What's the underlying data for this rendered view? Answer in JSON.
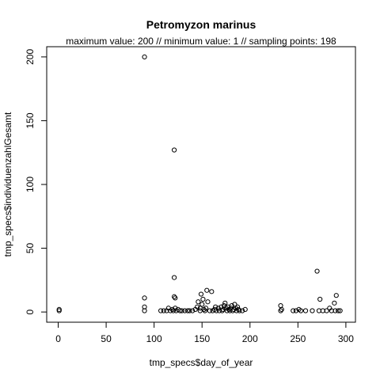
{
  "chart_data": {
    "type": "scatter",
    "title": "Petromyzon marinus",
    "subtitle": "maximum value: 200  //  minimum value: 1  // sampling points: 198",
    "xlabel": "tmp_specs$day_of_year",
    "ylabel": "tmp_specs$individuenzahlGesamt",
    "xlim": [
      -12,
      310
    ],
    "ylim": [
      -8,
      208
    ],
    "xticks": [
      0,
      50,
      100,
      150,
      200,
      250,
      300
    ],
    "yticks": [
      0,
      50,
      100,
      150,
      200
    ],
    "grid": false,
    "points": [
      {
        "x": 1,
        "y": 1
      },
      {
        "x": 1,
        "y": 2
      },
      {
        "x": 90,
        "y": 200
      },
      {
        "x": 90,
        "y": 11
      },
      {
        "x": 90,
        "y": 4
      },
      {
        "x": 90,
        "y": 1
      },
      {
        "x": 107,
        "y": 1
      },
      {
        "x": 110,
        "y": 1
      },
      {
        "x": 113,
        "y": 1
      },
      {
        "x": 115,
        "y": 3
      },
      {
        "x": 117,
        "y": 1
      },
      {
        "x": 119,
        "y": 2
      },
      {
        "x": 120,
        "y": 1
      },
      {
        "x": 121,
        "y": 127
      },
      {
        "x": 121,
        "y": 27
      },
      {
        "x": 121,
        "y": 12
      },
      {
        "x": 122,
        "y": 11
      },
      {
        "x": 122,
        "y": 3
      },
      {
        "x": 123,
        "y": 1
      },
      {
        "x": 125,
        "y": 2
      },
      {
        "x": 127,
        "y": 1
      },
      {
        "x": 129,
        "y": 1
      },
      {
        "x": 132,
        "y": 1
      },
      {
        "x": 135,
        "y": 1
      },
      {
        "x": 137,
        "y": 1
      },
      {
        "x": 140,
        "y": 1
      },
      {
        "x": 143,
        "y": 2
      },
      {
        "x": 145,
        "y": 4
      },
      {
        "x": 146,
        "y": 8
      },
      {
        "x": 148,
        "y": 3
      },
      {
        "x": 148,
        "y": 1
      },
      {
        "x": 149,
        "y": 14
      },
      {
        "x": 150,
        "y": 6
      },
      {
        "x": 151,
        "y": 10
      },
      {
        "x": 152,
        "y": 2
      },
      {
        "x": 153,
        "y": 1
      },
      {
        "x": 154,
        "y": 3
      },
      {
        "x": 155,
        "y": 17
      },
      {
        "x": 156,
        "y": 8
      },
      {
        "x": 158,
        "y": 1
      },
      {
        "x": 160,
        "y": 16
      },
      {
        "x": 161,
        "y": 1
      },
      {
        "x": 163,
        "y": 2
      },
      {
        "x": 164,
        "y": 4
      },
      {
        "x": 165,
        "y": 1
      },
      {
        "x": 167,
        "y": 3
      },
      {
        "x": 168,
        "y": 1
      },
      {
        "x": 170,
        "y": 4
      },
      {
        "x": 171,
        "y": 1
      },
      {
        "x": 172,
        "y": 2
      },
      {
        "x": 173,
        "y": 5
      },
      {
        "x": 174,
        "y": 7
      },
      {
        "x": 175,
        "y": 3
      },
      {
        "x": 176,
        "y": 1
      },
      {
        "x": 177,
        "y": 4
      },
      {
        "x": 178,
        "y": 2
      },
      {
        "x": 179,
        "y": 1
      },
      {
        "x": 180,
        "y": 3
      },
      {
        "x": 181,
        "y": 5
      },
      {
        "x": 182,
        "y": 1
      },
      {
        "x": 183,
        "y": 2
      },
      {
        "x": 184,
        "y": 6
      },
      {
        "x": 185,
        "y": 3
      },
      {
        "x": 186,
        "y": 1
      },
      {
        "x": 187,
        "y": 4
      },
      {
        "x": 188,
        "y": 2
      },
      {
        "x": 189,
        "y": 1
      },
      {
        "x": 192,
        "y": 1
      },
      {
        "x": 195,
        "y": 2
      },
      {
        "x": 232,
        "y": 1
      },
      {
        "x": 232,
        "y": 5
      },
      {
        "x": 233,
        "y": 2
      },
      {
        "x": 245,
        "y": 1
      },
      {
        "x": 248,
        "y": 1
      },
      {
        "x": 251,
        "y": 2
      },
      {
        "x": 253,
        "y": 1
      },
      {
        "x": 258,
        "y": 1
      },
      {
        "x": 265,
        "y": 1
      },
      {
        "x": 270,
        "y": 32
      },
      {
        "x": 272,
        "y": 1
      },
      {
        "x": 273,
        "y": 10
      },
      {
        "x": 276,
        "y": 1
      },
      {
        "x": 280,
        "y": 1
      },
      {
        "x": 283,
        "y": 3
      },
      {
        "x": 285,
        "y": 1
      },
      {
        "x": 288,
        "y": 7
      },
      {
        "x": 289,
        "y": 1
      },
      {
        "x": 290,
        "y": 13
      },
      {
        "x": 292,
        "y": 1
      },
      {
        "x": 294,
        "y": 1
      }
    ]
  }
}
